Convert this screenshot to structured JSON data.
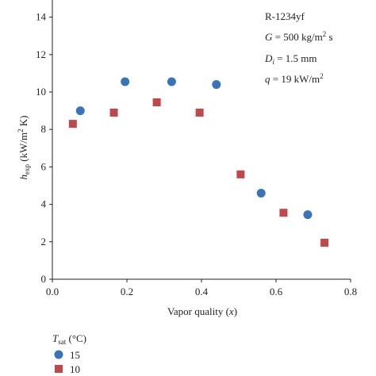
{
  "chart_data": {
    "type": "scatter",
    "xlabel": [
      "Vapor quality (",
      "x",
      ")"
    ],
    "ylabel": [
      "h",
      "exp",
      " (kW/m",
      "2",
      " K)"
    ],
    "annotations": [
      [
        "R-1234yf"
      ],
      [
        "G",
        " = 500 kg/m",
        "2",
        " s"
      ],
      [
        "D",
        "i",
        " = 1.5 mm"
      ],
      [
        "q",
        " = 19 kW/m",
        "2"
      ]
    ],
    "legend_title": [
      "T",
      "sat",
      " (°C)"
    ],
    "xlim": [
      0,
      0.8
    ],
    "ylim": [
      0,
      15
    ],
    "xticks": [
      {
        "value": 0,
        "label": "0.0"
      },
      {
        "value": 0.2,
        "label": "0.2"
      },
      {
        "value": 0.4,
        "label": "0.4"
      },
      {
        "value": 0.6,
        "label": "0.6"
      },
      {
        "value": 0.8,
        "label": "0.8"
      }
    ],
    "yticks": [
      0,
      2,
      4,
      6,
      8,
      10,
      12,
      14
    ],
    "series": [
      {
        "name": "15",
        "color": "#3a74b8",
        "marker": "circle",
        "x": [
          0.075,
          0.195,
          0.32,
          0.44,
          0.56,
          0.685
        ],
        "values": [
          9.0,
          10.55,
          10.55,
          10.4,
          4.6,
          3.45
        ]
      },
      {
        "name": "10",
        "color": "#c0474a",
        "marker": "square",
        "x": [
          0.055,
          0.165,
          0.28,
          0.395,
          0.505,
          0.62,
          0.73
        ],
        "values": [
          8.3,
          8.9,
          9.45,
          8.9,
          5.6,
          3.55,
          1.95
        ]
      }
    ]
  }
}
